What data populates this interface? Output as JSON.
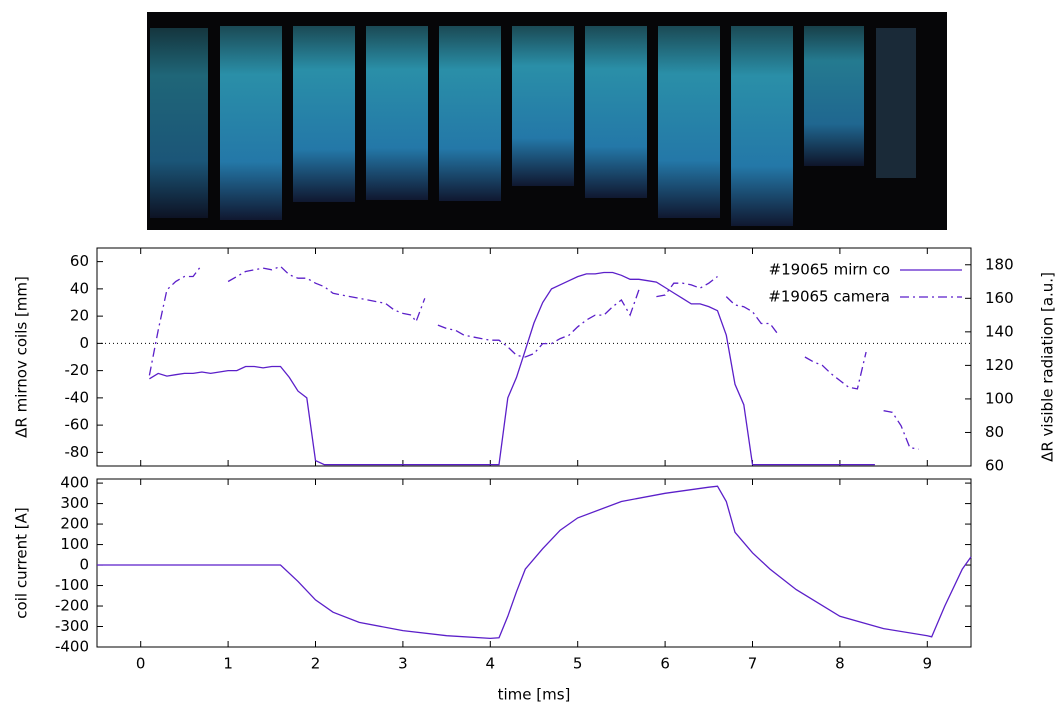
{
  "chart_data": [
    {
      "type": "line",
      "ylabel": "ΔR mirnov coils [mm]",
      "y2label": "ΔR visible radiation [a.u.]",
      "xlim": [
        -0.5,
        9.5
      ],
      "ylim": [
        -90,
        70
      ],
      "yticks": [
        -80,
        -60,
        -40,
        -20,
        0,
        20,
        40,
        60
      ],
      "y2lim": [
        60,
        190
      ],
      "y2ticks": [
        60,
        80,
        100,
        120,
        140,
        160,
        180
      ],
      "zero_line": true,
      "legend": "top-right",
      "series": [
        {
          "name": "#19065 mirn co",
          "color": "#5b1fc9",
          "dash": "solid",
          "x": [
            0.1,
            0.2,
            0.3,
            0.4,
            0.5,
            0.6,
            0.7,
            0.8,
            0.9,
            1.0,
            1.1,
            1.2,
            1.3,
            1.4,
            1.5,
            1.6,
            1.7,
            1.8,
            1.9,
            2.0,
            2.1,
            4.1,
            4.2,
            4.3,
            4.4,
            4.5,
            4.6,
            4.7,
            4.8,
            4.9,
            5.0,
            5.1,
            5.2,
            5.3,
            5.4,
            5.5,
            5.6,
            5.7,
            5.8,
            5.9,
            6.0,
            6.1,
            6.2,
            6.3,
            6.4,
            6.5,
            6.6,
            6.7,
            6.8,
            6.9,
            7.0,
            8.4
          ],
          "values": [
            -26,
            -22,
            -24,
            -23,
            -22,
            -22,
            -21,
            -22,
            -21,
            -20,
            -20,
            -17,
            -17,
            -18,
            -17,
            -17,
            -25,
            -35,
            -40,
            -86,
            -89,
            -89,
            -40,
            -25,
            -5,
            15,
            30,
            40,
            43,
            46,
            49,
            51,
            51,
            52,
            52,
            50,
            47,
            47,
            46,
            45,
            41,
            37,
            33,
            29,
            29,
            27,
            24,
            6,
            -30,
            -45,
            -89,
            -89
          ]
        },
        {
          "name": "#19065 camera",
          "color": "#5b1fc9",
          "dash": "dashdot",
          "axis": "y2",
          "x": [
            0.1,
            0.2,
            0.3,
            0.4,
            0.5,
            0.6,
            0.7,
            0.8,
            1.0,
            1.1,
            1.2,
            1.3,
            1.4,
            1.5,
            1.6,
            1.7,
            1.8,
            1.9,
            2.0,
            2.1,
            2.2,
            2.3,
            2.5,
            2.7,
            2.8,
            2.9,
            3.0,
            3.1,
            3.15,
            3.25,
            3.3,
            3.4,
            3.5,
            3.6,
            3.7,
            3.8,
            3.9,
            4.0,
            4.1,
            4.2,
            4.3,
            4.4,
            4.5,
            4.6,
            4.7,
            4.8,
            4.9,
            5.0,
            5.1,
            5.2,
            5.3,
            5.4,
            5.5,
            5.6,
            5.7,
            5.8,
            5.9,
            6.0,
            6.1,
            6.2,
            6.3,
            6.4,
            6.5,
            6.6,
            6.65,
            6.7,
            6.8,
            6.9,
            7.0,
            7.1,
            7.2,
            7.3,
            7.4,
            7.6,
            7.7,
            7.8,
            7.9,
            8.0,
            8.1,
            8.2,
            8.3,
            8.4,
            8.5,
            8.6,
            8.7,
            8.8,
            8.9
          ],
          "values": [
            114,
            141,
            165,
            170,
            173,
            173,
            180,
            null,
            170,
            173,
            176,
            177,
            178,
            177,
            179,
            174,
            172,
            172,
            169,
            167,
            163,
            162,
            160,
            158,
            157,
            153,
            151,
            150,
            146,
            160,
            null,
            144,
            142,
            141,
            138,
            137,
            136,
            135,
            135,
            131,
            126,
            125,
            127,
            133,
            133,
            136,
            138,
            143,
            147,
            150,
            150,
            155,
            159,
            150,
            165,
            null,
            161,
            162,
            169,
            169,
            168,
            166,
            169,
            173,
            null,
            161,
            156,
            155,
            152,
            145,
            145,
            138,
            null,
            125,
            122,
            120,
            115,
            111,
            107,
            106,
            128,
            null,
            93,
            92,
            84,
            71,
            70
          ]
        }
      ]
    },
    {
      "type": "line",
      "xlabel": "time [ms]",
      "ylabel": "coil current [A]",
      "xlim": [
        -0.5,
        9.5
      ],
      "xticks": [
        0,
        1,
        2,
        3,
        4,
        5,
        6,
        7,
        8,
        9
      ],
      "ylim": [
        -400,
        420
      ],
      "yticks": [
        -400,
        -300,
        -200,
        -100,
        0,
        100,
        200,
        300,
        400
      ],
      "series": [
        {
          "color": "#5b1fc9",
          "dash": "solid",
          "x": [
            -0.5,
            1.6,
            1.8,
            2.0,
            2.2,
            2.5,
            3.0,
            3.5,
            4.0,
            4.1,
            4.2,
            4.3,
            4.4,
            4.6,
            4.8,
            5.0,
            5.5,
            6.0,
            6.5,
            6.6,
            6.7,
            6.8,
            7.0,
            7.2,
            7.5,
            8.0,
            8.5,
            9.0,
            9.05,
            9.2,
            9.4,
            9.5
          ],
          "values": [
            0,
            0,
            -80,
            -170,
            -230,
            -280,
            -320,
            -345,
            -358,
            -355,
            -250,
            -130,
            -20,
            80,
            170,
            230,
            310,
            350,
            380,
            385,
            310,
            160,
            60,
            -20,
            -120,
            -250,
            -310,
            -345,
            -350,
            -200,
            -20,
            40
          ]
        }
      ]
    }
  ]
}
